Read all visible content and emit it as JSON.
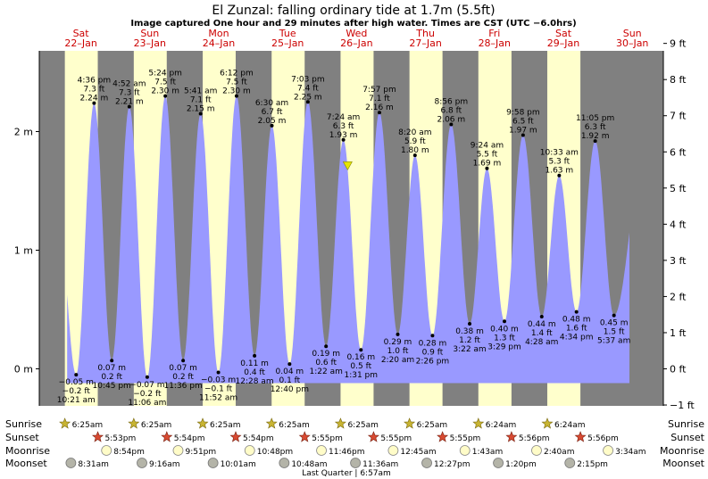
{
  "header": {
    "title": "El Zunzal: falling  ordinary tide at 1.7m (5.5ft)",
    "subtitle": "Image captured One hour and 29 minutes after high water. Times are CST (UTC −6.0hrs)"
  },
  "colors": {
    "night": "#808080",
    "day": "#ffffcc",
    "tide_fill": "#9999ff",
    "marker": "#e6e600"
  },
  "chart_data": {
    "type": "area",
    "title": "El Zunzal: falling  ordinary tide at 1.7m (5.5ft)",
    "x_range": [
      "2023-01-22T00:00",
      "2023-01-30T18:00"
    ],
    "y_left": {
      "unit": "m",
      "range": [
        -0.45,
        3.17
      ],
      "ticks": [
        {
          "v": 0,
          "label": "0 m"
        },
        {
          "v": 1,
          "label": "1 m"
        },
        {
          "v": 2,
          "label": "2 m"
        }
      ]
    },
    "y_right": {
      "unit": "ft",
      "range": [
        -1.5,
        10.4
      ],
      "ticks": [
        -1,
        0,
        1,
        2,
        3,
        4,
        5,
        6,
        7,
        8,
        9
      ],
      "tick_labels": [
        "−1 ft",
        "0 ft",
        "1 ft",
        "2 ft",
        "3 ft",
        "4 ft",
        "5 ft",
        "6 ft",
        "7 ft",
        "8 ft",
        "9 ft"
      ]
    },
    "days": [
      {
        "dow": "Sat",
        "date": "22–Jan"
      },
      {
        "dow": "Sun",
        "date": "23–Jan"
      },
      {
        "dow": "Mon",
        "date": "24–Jan"
      },
      {
        "dow": "Tue",
        "date": "25–Jan"
      },
      {
        "dow": "Wed",
        "date": "26–Jan"
      },
      {
        "dow": "Thu",
        "date": "27–Jan"
      },
      {
        "dow": "Fri",
        "date": "28–Jan"
      },
      {
        "dow": "Sat",
        "date": "29–Jan"
      },
      {
        "dow": "Sun",
        "date": "30–Jan"
      }
    ],
    "daylight": [
      {
        "day": 0,
        "sunrise": "6:25am",
        "sunset": "5:53pm"
      },
      {
        "day": 1,
        "sunrise": "6:25am",
        "sunset": "5:54pm"
      },
      {
        "day": 2,
        "sunrise": "6:25am",
        "sunset": "5:54pm"
      },
      {
        "day": 3,
        "sunrise": "6:25am",
        "sunset": "5:55pm"
      },
      {
        "day": 4,
        "sunrise": "6:25am",
        "sunset": "5:55pm"
      },
      {
        "day": 5,
        "sunrise": "6:25am",
        "sunset": "5:55pm"
      },
      {
        "day": 6,
        "sunrise": "6:24am",
        "sunset": "5:56pm"
      },
      {
        "day": 7,
        "sunrise": "6:24am",
        "sunset": "5:56pm"
      }
    ],
    "tides": [
      {
        "day": 0,
        "time": "10:21 am",
        "m": -0.05,
        "ft": "−0.2 ft",
        "m_label": "−0.05 m",
        "type": "low"
      },
      {
        "day": 0,
        "time": "4:36 pm",
        "m": 2.24,
        "ft": "7.3 ft",
        "m_label": "2.24 m",
        "type": "high"
      },
      {
        "day": 0,
        "time": "10:45 pm",
        "m": 0.07,
        "ft": "0.2 ft",
        "m_label": "0.07 m",
        "type": "low"
      },
      {
        "day": 1,
        "time": "4:52 am",
        "m": 2.21,
        "ft": "7.3 ft",
        "m_label": "2.21 m",
        "type": "high"
      },
      {
        "day": 1,
        "time": "11:06 am",
        "m": -0.07,
        "ft": "−0.2 ft",
        "m_label": "−0.07 m",
        "type": "low"
      },
      {
        "day": 1,
        "time": "5:24 pm",
        "m": 2.3,
        "ft": "7.5 ft",
        "m_label": "2.30 m",
        "type": "high"
      },
      {
        "day": 1,
        "time": "11:36 pm",
        "m": 0.07,
        "ft": "0.2 ft",
        "m_label": "0.07 m",
        "type": "low"
      },
      {
        "day": 2,
        "time": "5:41 am",
        "m": 2.15,
        "ft": "7.1 ft",
        "m_label": "2.15 m",
        "type": "high"
      },
      {
        "day": 2,
        "time": "11:52 am",
        "m": -0.03,
        "ft": "−0.1 ft",
        "m_label": "−0.03 m",
        "type": "low"
      },
      {
        "day": 2,
        "time": "6:12 pm",
        "m": 2.3,
        "ft": "7.5 ft",
        "m_label": "2.30 m",
        "type": "high"
      },
      {
        "day": 3,
        "time": "12:28 am",
        "m": 0.11,
        "ft": "0.4 ft",
        "m_label": "0.11 m",
        "type": "low"
      },
      {
        "day": 3,
        "time": "6:30 am",
        "m": 2.05,
        "ft": "6.7 ft",
        "m_label": "2.05 m",
        "type": "high"
      },
      {
        "day": 3,
        "time": "12:40 pm",
        "m": 0.04,
        "ft": "0.1 ft",
        "m_label": "0.04 m",
        "type": "low"
      },
      {
        "day": 3,
        "time": "7:03 pm",
        "m": 2.25,
        "ft": "7.4 ft",
        "m_label": "2.25 m",
        "type": "high"
      },
      {
        "day": 4,
        "time": "1:22 am",
        "m": 0.19,
        "ft": "0.6 ft",
        "m_label": "0.19 m",
        "type": "low"
      },
      {
        "day": 4,
        "time": "7:24 am",
        "m": 1.93,
        "ft": "6.3 ft",
        "m_label": "1.93 m",
        "type": "high"
      },
      {
        "day": 4,
        "time": "1:31 pm",
        "m": 0.16,
        "ft": "0.5 ft",
        "m_label": "0.16 m",
        "type": "low"
      },
      {
        "day": 4,
        "time": "7:57 pm",
        "m": 2.16,
        "ft": "7.1 ft",
        "m_label": "2.16 m",
        "type": "high"
      },
      {
        "day": 5,
        "time": "2:20 am",
        "m": 0.29,
        "ft": "1.0 ft",
        "m_label": "0.29 m",
        "type": "low"
      },
      {
        "day": 5,
        "time": "8:20 am",
        "m": 1.8,
        "ft": "5.9 ft",
        "m_label": "1.80 m",
        "type": "high"
      },
      {
        "day": 5,
        "time": "2:26 pm",
        "m": 0.28,
        "ft": "0.9 ft",
        "m_label": "0.28 m",
        "type": "low"
      },
      {
        "day": 5,
        "time": "8:56 pm",
        "m": 2.06,
        "ft": "6.8 ft",
        "m_label": "2.06 m",
        "type": "high"
      },
      {
        "day": 6,
        "time": "3:22 am",
        "m": 0.38,
        "ft": "1.2 ft",
        "m_label": "0.38 m",
        "type": "low"
      },
      {
        "day": 6,
        "time": "9:24 am",
        "m": 1.69,
        "ft": "5.5 ft",
        "m_label": "1.69 m",
        "type": "high"
      },
      {
        "day": 6,
        "time": "3:29 pm",
        "m": 0.4,
        "ft": "1.3 ft",
        "m_label": "0.40 m",
        "type": "low"
      },
      {
        "day": 6,
        "time": "9:58 pm",
        "m": 1.97,
        "ft": "6.5 ft",
        "m_label": "1.97 m",
        "type": "high"
      },
      {
        "day": 7,
        "time": "4:28 am",
        "m": 0.44,
        "ft": "1.4 ft",
        "m_label": "0.44 m",
        "type": "low"
      },
      {
        "day": 7,
        "time": "10:33 am",
        "m": 1.63,
        "ft": "5.3 ft",
        "m_label": "1.63 m",
        "type": "high"
      },
      {
        "day": 7,
        "time": "4:34 pm",
        "m": 0.48,
        "ft": "1.6 ft",
        "m_label": "0.48 m",
        "type": "low"
      },
      {
        "day": 7,
        "time": "11:05 pm",
        "m": 1.92,
        "ft": "6.3 ft",
        "m_label": "1.92 m",
        "type": "high"
      },
      {
        "day": 8,
        "time": "5:37 am",
        "m": 0.45,
        "ft": "1.5 ft",
        "m_label": "0.45 m",
        "type": "low"
      }
    ],
    "current": {
      "day": 4,
      "time": "8:53 am",
      "m": 1.7,
      "ft": "5.5 ft"
    },
    "rows": {
      "labels": [
        "Sunrise",
        "Sunset",
        "Moonrise",
        "Moonset"
      ],
      "sunrise": [
        {
          "day": 0,
          "time": "6:25am"
        },
        {
          "day": 1,
          "time": "6:25am"
        },
        {
          "day": 2,
          "time": "6:25am"
        },
        {
          "day": 3,
          "time": "6:25am"
        },
        {
          "day": 4,
          "time": "6:25am"
        },
        {
          "day": 5,
          "time": "6:25am"
        },
        {
          "day": 6,
          "time": "6:24am"
        },
        {
          "day": 7,
          "time": "6:24am"
        }
      ],
      "sunset": [
        {
          "day": 0,
          "time": "5:53pm"
        },
        {
          "day": 1,
          "time": "5:54pm"
        },
        {
          "day": 2,
          "time": "5:54pm"
        },
        {
          "day": 3,
          "time": "5:55pm"
        },
        {
          "day": 4,
          "time": "5:55pm"
        },
        {
          "day": 5,
          "time": "5:55pm"
        },
        {
          "day": 6,
          "time": "5:56pm"
        },
        {
          "day": 7,
          "time": "5:56pm"
        }
      ],
      "moonrise": [
        {
          "day": 0,
          "time": "8:54pm"
        },
        {
          "day": 1,
          "time": "9:51pm"
        },
        {
          "day": 2,
          "time": "10:48pm"
        },
        {
          "day": 3,
          "time": "11:46pm"
        },
        {
          "day": 5,
          "time": "12:45am"
        },
        {
          "day": 6,
          "time": "1:43am"
        },
        {
          "day": 7,
          "time": "2:40am"
        },
        {
          "day": 8,
          "time": "3:34am"
        }
      ],
      "moonset": [
        {
          "day": 0,
          "time": "8:31am"
        },
        {
          "day": 1,
          "time": "9:16am"
        },
        {
          "day": 2,
          "time": "10:01am"
        },
        {
          "day": 3,
          "time": "10:48am"
        },
        {
          "day": 4,
          "time": "11:36am"
        },
        {
          "day": 5,
          "time": "12:27pm"
        },
        {
          "day": 6,
          "time": "1:20pm"
        },
        {
          "day": 7,
          "time": "2:15pm"
        }
      ],
      "moon_phase": "Last Quarter | 6:57am"
    }
  }
}
